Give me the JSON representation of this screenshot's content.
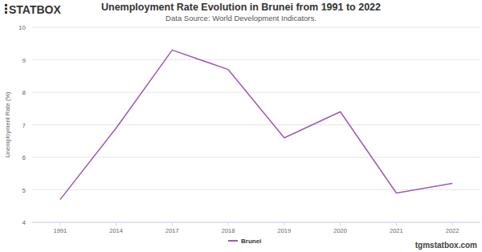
{
  "chart_data": {
    "type": "line",
    "title": "Unemployment Rate Evolution in Brunei from 1991 to 2022",
    "subtitle": "Data Source: World Development Indicators.",
    "y_label": "Unemployment Rate (%)",
    "logo": "STATBOX",
    "website": "tgmstatbox.com",
    "categories": [
      "1991",
      "2014",
      "2017",
      "2018",
      "2019",
      "2020",
      "2021",
      "2022"
    ],
    "series": [
      {
        "name": "Brunei",
        "color": "#9b59b6",
        "values": [
          4.7,
          6.9,
          9.3,
          8.7,
          6.6,
          7.4,
          4.9,
          5.2
        ]
      }
    ],
    "ylim": [
      4,
      10
    ],
    "yticks": [
      4,
      5,
      6,
      7,
      8,
      9,
      10
    ],
    "grid": true,
    "legend": "bottom"
  }
}
